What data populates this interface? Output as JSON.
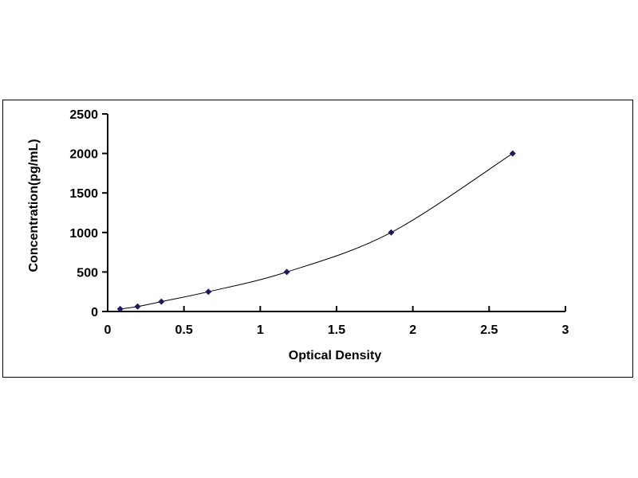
{
  "chart_data": {
    "type": "scatter",
    "xlabel": "Optical Density",
    "ylabel": "Concentration(pg/mL)",
    "xlim": [
      0,
      3
    ],
    "ylim": [
      0,
      2500
    ],
    "xticks": [
      "0",
      "0.5",
      "1",
      "1.5",
      "2",
      "2.5",
      "3"
    ],
    "yticks": [
      "0",
      "500",
      "1000",
      "1500",
      "2000",
      "2500"
    ],
    "grid": false,
    "trendline": "smooth curve",
    "marker": "diamond",
    "color": "#1a1a5e",
    "series": [
      {
        "x": [
          0.082,
          0.196,
          0.352,
          0.66,
          1.174,
          1.858,
          2.654
        ],
        "y": [
          31.25,
          62.5,
          125,
          250,
          500,
          1000,
          2000
        ]
      }
    ]
  }
}
